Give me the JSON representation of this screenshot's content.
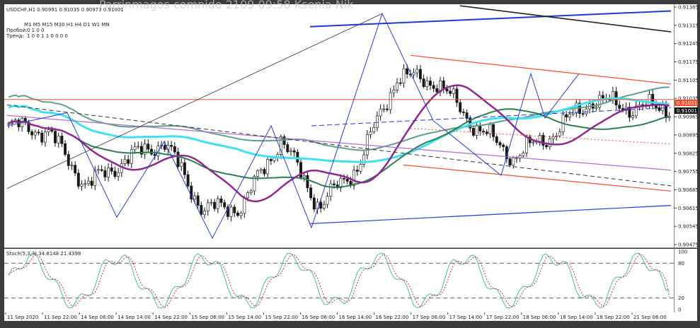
{
  "window": {
    "symbol_header": "USDCHF,H1  0.90991 0.91035 0.90973 0.91001"
  },
  "indicator_panel": {
    "timeframes_line": "M1 M5 M15 M30 H1 H4 D1 W1 MN",
    "row1_label": "Пробой:",
    "row1_values": "0  1                    0  0",
    "row2_label": "Тренд:",
    "row2_values": "1  0  0  1  1  0  0  0  0"
  },
  "stoch_header": "Stoch(5,3,3) 34.8148 21.4398",
  "price_axis": [
    "0.91385",
    "0.91315",
    "0.91245",
    "0.91175",
    "0.91105",
    "0.91035",
    "0.90965",
    "0.90895",
    "0.90825",
    "0.90755",
    "0.90685",
    "0.90615",
    "0.90545",
    "0.90475"
  ],
  "price_badges": {
    "red": "0.91031",
    "black": "0.91001"
  },
  "stoch_axis": [
    "100",
    "80",
    "20",
    "0"
  ],
  "time_axis": [
    "11 Sep 2020",
    "11 Sep 22:00",
    "14 Sep 06:00",
    "14 Sep 14:00",
    "14 Sep 22:00",
    "15 Sep 06:00",
    "15 Sep 14:00",
    "15 Sep 22:00",
    "16 Sep 06:00",
    "16 Sep 14:00",
    "16 Sep 22:00",
    "17 Sep 06:00",
    "17 Sep 14:00",
    "17 Sep 22:00",
    "18 Sep 06:00",
    "18 Sep 14:00",
    "18 Sep 22:00",
    "21 Sep 06:00"
  ],
  "watermark": "Parrinmagos comnido   2109   09:58 Ksenia Nik",
  "colors": {
    "bg": "#ffffff",
    "frame": "#3c3c3c",
    "bull": "#ffffff",
    "bear": "#1a1a1a",
    "cyan": "#40e0f0",
    "teal": "#5f9e8a",
    "green": "#2e7d4f",
    "purple": "#8e2a8e",
    "violet": "#b070d0",
    "blue": "#1f3ad0",
    "red": "#ff4a2a",
    "zigzag": "#2a3fd8",
    "stoch_main": "#4fb8b0",
    "stoch_signal": "#e03030"
  },
  "chart_data": {
    "type": "candlestick",
    "x": [
      "11 Sep 2020",
      "11 Sep 22:00",
      "14 Sep 06:00",
      "14 Sep 14:00",
      "14 Sep 22:00",
      "15 Sep 06:00",
      "15 Sep 14:00",
      "15 Sep 22:00",
      "16 Sep 06:00",
      "16 Sep 14:00",
      "16 Sep 22:00",
      "17 Sep 06:00",
      "17 Sep 14:00",
      "17 Sep 22:00",
      "18 Sep 06:00",
      "18 Sep 14:00",
      "18 Sep 22:00",
      "21 Sep 06:00"
    ],
    "ylim": [
      0.90475,
      0.91385
    ],
    "close_key": [
      0.9093,
      0.9091,
      0.907,
      0.908,
      0.9087,
      0.9061,
      0.9062,
      0.9088,
      0.9062,
      0.9078,
      0.9112,
      0.911,
      0.9093,
      0.9081,
      0.909,
      0.9103,
      0.91,
      0.91
    ],
    "series_names": [
      "Stoch(5,3,3)"
    ],
    "stoch_last": [
      34.8148,
      21.4398
    ],
    "stoch_levels": [
      80,
      20
    ]
  }
}
